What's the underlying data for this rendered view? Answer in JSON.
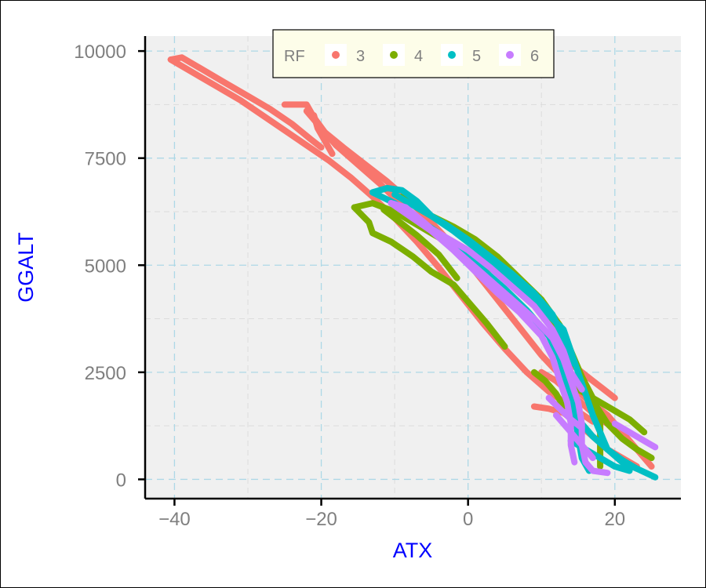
{
  "chart_data": {
    "type": "scatter",
    "xlabel": "ATX",
    "ylabel": "GGALT",
    "xlim": [
      -44,
      29
    ],
    "ylim": [
      -450,
      10350
    ],
    "x_ticks": [
      -40,
      -20,
      0,
      20
    ],
    "x_tick_labels": [
      "−40",
      "−20",
      "0",
      "20"
    ],
    "y_ticks": [
      0,
      2500,
      5000,
      7500,
      10000
    ],
    "y_tick_labels": [
      "0",
      "2500",
      "5000",
      "7500",
      "10000"
    ],
    "grid": true,
    "legend": {
      "title": "RF",
      "position": "top",
      "entries": [
        "3",
        "4",
        "5",
        "6"
      ]
    },
    "colors": {
      "3": "#f8766d",
      "4": "#7cae00",
      "5": "#00bfc4",
      "6": "#c77cff",
      "panel": "#f0f0f0",
      "grid": "#add8e6",
      "axis_title": "#0000ff"
    },
    "series": [
      {
        "name": "3",
        "traces": [
          [
            [
              -40.5,
              9800
            ],
            [
              -39.5,
              9700
            ],
            [
              -37,
              9450
            ],
            [
              -34,
              9150
            ],
            [
              -31,
              8850
            ],
            [
              -28,
              8500
            ],
            [
              -25,
              8150
            ],
            [
              -22,
              7800
            ],
            [
              -19,
              7450
            ],
            [
              -16,
              7050
            ],
            [
              -13,
              6600
            ],
            [
              -10,
              6100
            ],
            [
              -7,
              5550
            ],
            [
              -4,
              4950
            ],
            [
              -1,
              4300
            ],
            [
              2,
              3650
            ],
            [
              5,
              3050
            ],
            [
              8,
              2500
            ],
            [
              11,
              2050
            ],
            [
              14,
              1700
            ],
            [
              17,
              1350
            ]
          ],
          [
            [
              -40.5,
              9800
            ],
            [
              -39,
              9850
            ],
            [
              -36.5,
              9600
            ],
            [
              -33.5,
              9300
            ],
            [
              -30,
              8950
            ],
            [
              -27,
              8650
            ],
            [
              -24,
              8300
            ],
            [
              -21.5,
              7950
            ],
            [
              -20,
              7750
            ]
          ],
          [
            [
              -25,
              8750
            ],
            [
              -22,
              8750
            ],
            [
              -21,
              8450
            ],
            [
              -19.5,
              8100
            ],
            [
              -17,
              7750
            ],
            [
              -14,
              7350
            ],
            [
              -11,
              6950
            ],
            [
              -8,
              6500
            ],
            [
              -5,
              6000
            ],
            [
              -2,
              5450
            ],
            [
              1,
              4850
            ],
            [
              4,
              4200
            ],
            [
              7,
              3550
            ],
            [
              10,
              2900
            ],
            [
              13,
              2350
            ],
            [
              16,
              1900
            ],
            [
              19,
              1500
            ],
            [
              21,
              1100
            ],
            [
              23,
              700
            ],
            [
              25,
              300
            ]
          ],
          [
            [
              -21,
              8500
            ],
            [
              -20.5,
              8200
            ],
            [
              -19.5,
              7900
            ],
            [
              -18.5,
              7600
            ]
          ],
          [
            [
              -22,
              8600
            ],
            [
              -20,
              8200
            ],
            [
              -18,
              7800
            ],
            [
              -15,
              7350
            ],
            [
              -12,
              6900
            ],
            [
              -9,
              6400
            ],
            [
              -6,
              5850
            ]
          ],
          [
            [
              9,
              1700
            ],
            [
              11,
              1650
            ],
            [
              13,
              1550
            ],
            [
              15,
              1300
            ],
            [
              17,
              1000
            ],
            [
              19,
              700
            ],
            [
              21,
              500
            ],
            [
              23,
              300
            ]
          ],
          [
            [
              14,
              2700
            ],
            [
              15.5,
              2500
            ],
            [
              17,
              2300
            ],
            [
              18.5,
              2100
            ],
            [
              20,
              1900
            ]
          ],
          [
            [
              10,
              2500
            ],
            [
              12,
              2300
            ],
            [
              14,
              2000
            ],
            [
              16,
              1700
            ],
            [
              18,
              1400
            ],
            [
              20,
              1200
            ]
          ]
        ]
      },
      {
        "name": "4",
        "traces": [
          [
            [
              -15.5,
              6350
            ],
            [
              -13,
              6450
            ],
            [
              -10,
              6250
            ],
            [
              -7,
              5950
            ],
            [
              -4,
              5650
            ],
            [
              -1,
              5350
            ],
            [
              2,
              5050
            ],
            [
              5,
              4700
            ],
            [
              8,
              4300
            ],
            [
              11,
              3800
            ],
            [
              13,
              3200
            ],
            [
              14.5,
              2700
            ],
            [
              16,
              2200
            ],
            [
              17.5,
              1700
            ],
            [
              19,
              1300
            ],
            [
              21,
              950
            ],
            [
              23,
              700
            ],
            [
              25,
              500
            ]
          ],
          [
            [
              -15.5,
              6350
            ],
            [
              -13.5,
              6000
            ],
            [
              -13,
              5750
            ],
            [
              -10.5,
              5550
            ],
            [
              -7.5,
              5200
            ],
            [
              -5,
              4850
            ],
            [
              -2,
              4550
            ],
            [
              0,
              4150
            ],
            [
              2.5,
              3650
            ],
            [
              5,
              3100
            ]
          ],
          [
            [
              -11.5,
              6300
            ],
            [
              -10,
              6100
            ],
            [
              -7,
              5700
            ],
            [
              -4,
              5250
            ],
            [
              -1.5,
              4700
            ]
          ],
          [
            [
              -9,
              6600
            ],
            [
              -7,
              6350
            ],
            [
              -5,
              6150
            ],
            [
              -2,
              5900
            ],
            [
              1,
              5600
            ],
            [
              4,
              5200
            ],
            [
              7,
              4700
            ],
            [
              10,
              4200
            ],
            [
              12.5,
              3600
            ],
            [
              14,
              3000
            ],
            [
              15.5,
              2400
            ],
            [
              17,
              1900
            ],
            [
              18,
              1400
            ],
            [
              18,
              900
            ],
            [
              18,
              300
            ]
          ],
          [
            [
              14,
              2200
            ],
            [
              16,
              2000
            ],
            [
              18,
              1800
            ],
            [
              20,
              1600
            ],
            [
              22,
              1400
            ],
            [
              24,
              1100
            ]
          ],
          [
            [
              9,
              2500
            ],
            [
              10.5,
              2300
            ],
            [
              12,
              2000
            ],
            [
              13,
              1700
            ]
          ]
        ]
      },
      {
        "name": "5",
        "traces": [
          [
            [
              -13,
              6700
            ],
            [
              -11,
              6800
            ],
            [
              -9,
              6750
            ],
            [
              -7,
              6500
            ],
            [
              -5,
              6150
            ],
            [
              -2,
              5800
            ],
            [
              1,
              5400
            ],
            [
              4,
              4950
            ],
            [
              7,
              4500
            ],
            [
              10,
              4000
            ],
            [
              13,
              3500
            ],
            [
              14,
              3000
            ],
            [
              15,
              2500
            ],
            [
              16,
              2000
            ],
            [
              17,
              1500
            ],
            [
              18,
              1100
            ],
            [
              19,
              700
            ],
            [
              21,
              400
            ],
            [
              23,
              250
            ],
            [
              25.5,
              50
            ]
          ],
          [
            [
              -13,
              6700
            ],
            [
              -10,
              6450
            ],
            [
              -7,
              6100
            ],
            [
              -4,
              5750
            ],
            [
              -1,
              5350
            ],
            [
              2,
              4900
            ],
            [
              5,
              4450
            ],
            [
              8,
              3950
            ],
            [
              11,
              3350
            ],
            [
              12.5,
              2800
            ],
            [
              13.5,
              2200
            ],
            [
              14.5,
              1600
            ],
            [
              15,
              1000
            ],
            [
              15.5,
              500
            ],
            [
              16.5,
              200
            ]
          ],
          [
            [
              -10,
              6650
            ],
            [
              -8,
              6450
            ],
            [
              -6,
              6250
            ],
            [
              -3,
              5950
            ],
            [
              0,
              5600
            ],
            [
              3,
              5200
            ],
            [
              6,
              4800
            ],
            [
              9,
              4350
            ],
            [
              11.5,
              3850
            ],
            [
              13,
              3300
            ],
            [
              14,
              2700
            ]
          ],
          [
            [
              15,
              1400
            ],
            [
              17,
              1000
            ],
            [
              19,
              700
            ],
            [
              21,
              450
            ],
            [
              23,
              250
            ]
          ],
          [
            [
              14,
              900
            ],
            [
              16,
              700
            ],
            [
              18,
              500
            ],
            [
              20,
              300
            ],
            [
              22,
              200
            ]
          ]
        ]
      },
      {
        "name": "6",
        "traces": [
          [
            [
              -10.5,
              6450
            ],
            [
              -8.5,
              6350
            ],
            [
              -6,
              6000
            ],
            [
              -3,
              5550
            ],
            [
              0,
              5100
            ],
            [
              3,
              4650
            ],
            [
              6,
              4200
            ],
            [
              9,
              3750
            ],
            [
              11.5,
              3300
            ],
            [
              13,
              2800
            ],
            [
              14,
              2300
            ],
            [
              15,
              1800
            ],
            [
              15.5,
              1300
            ],
            [
              15.5,
              800
            ],
            [
              16,
              400
            ],
            [
              17,
              200
            ],
            [
              19,
              150
            ]
          ],
          [
            [
              -10.5,
              6450
            ],
            [
              -8,
              6150
            ],
            [
              -5,
              5800
            ],
            [
              -2,
              5350
            ],
            [
              1,
              4850
            ],
            [
              4,
              4350
            ],
            [
              7,
              3900
            ],
            [
              10,
              3350
            ],
            [
              11.5,
              2850
            ],
            [
              12.5,
              2300
            ],
            [
              13.5,
              1800
            ],
            [
              14,
              1300
            ],
            [
              14,
              800
            ],
            [
              14.5,
              400
            ]
          ],
          [
            [
              -6,
              5950
            ],
            [
              -3,
              5650
            ],
            [
              0,
              5350
            ],
            [
              3,
              4950
            ],
            [
              6,
              4500
            ],
            [
              9,
              4050
            ],
            [
              11.5,
              3500
            ],
            [
              13,
              3000
            ],
            [
              14,
              2500
            ],
            [
              15.5,
              2100
            ]
          ],
          [
            [
              12,
              1500
            ],
            [
              13,
              1300
            ],
            [
              14,
              1100
            ],
            [
              15,
              900
            ],
            [
              16,
              700
            ],
            [
              17,
              500
            ]
          ],
          [
            [
              11,
              1900
            ],
            [
              12.5,
              1650
            ],
            [
              14,
              1400
            ],
            [
              15.5,
              1200
            ]
          ],
          [
            [
              20,
              1300
            ],
            [
              21.5,
              1150
            ],
            [
              23,
              1000
            ],
            [
              24.5,
              850
            ],
            [
              25.5,
              750
            ]
          ]
        ]
      }
    ]
  }
}
